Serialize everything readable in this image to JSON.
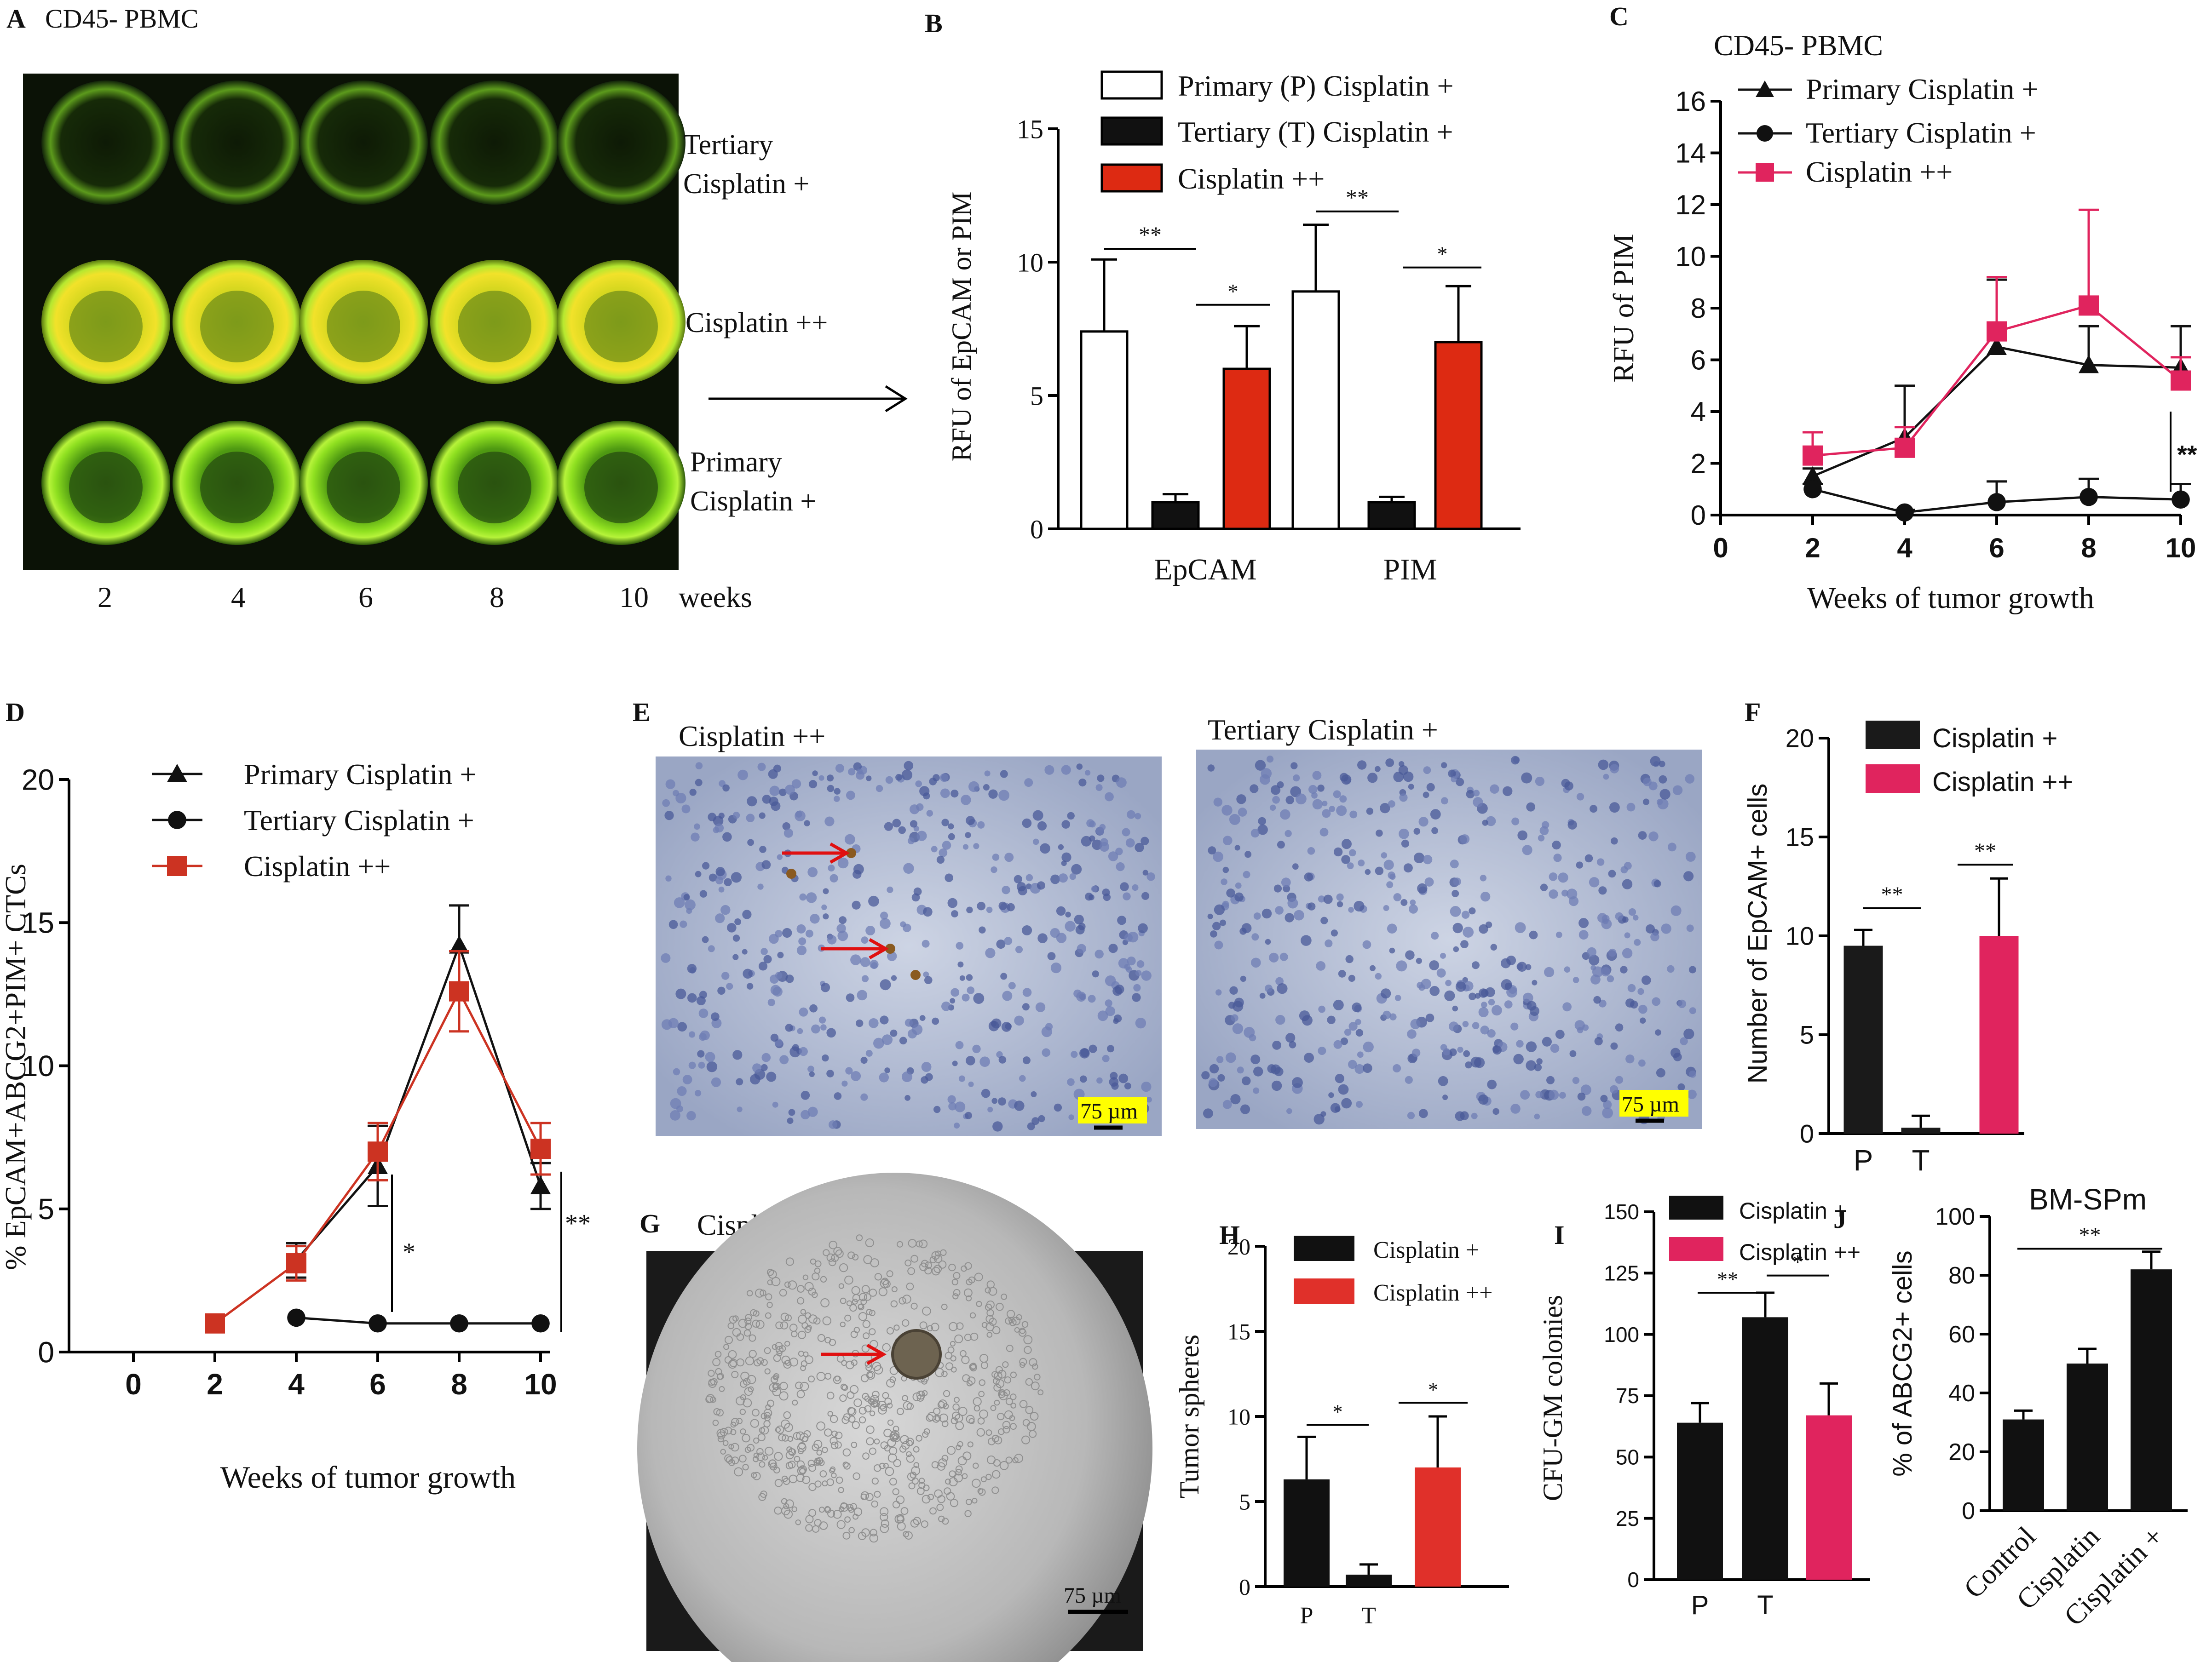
{
  "figure": {
    "panels": {
      "A": {
        "letter": "A",
        "title": "CD45- PBMC",
        "rows": [
          "Tertiary\nCisplatin +",
          "Cisplatin ++",
          "Primary\nCisplatin +"
        ],
        "col_labels": [
          "2",
          "4",
          "6",
          "8",
          "10"
        ],
        "weeks_label": "weeks"
      },
      "E": {
        "letter": "E",
        "left_title": "Cisplatin ++",
        "right_title": "Tertiary Cisplatin +",
        "scale_bar": "75 µm"
      },
      "G": {
        "letter": "G",
        "title": "Cisplatin ++",
        "scale_bar": "75 µm"
      }
    }
  },
  "chart_data": [
    {
      "panel": "B",
      "type": "bar",
      "ylabel": "RFU of EpCAM or PIM",
      "ylim": [
        0,
        15
      ],
      "yticks": [
        0,
        5,
        10,
        15
      ],
      "categories": [
        "EpCAM",
        "PIM"
      ],
      "series": [
        {
          "name": "Primary (P) Cisplatin +",
          "color": "#ffffff",
          "values": [
            7.4,
            8.9
          ],
          "errors": [
            2.7,
            2.5
          ]
        },
        {
          "name": "Tertiary (T) Cisplatin +",
          "color": "#111111",
          "values": [
            1.0,
            1.0
          ],
          "errors": [
            0.3,
            0.2
          ]
        },
        {
          "name": "Cisplatin ++",
          "color": "#dd2a12",
          "values": [
            6.0,
            7.0
          ],
          "errors": [
            1.6,
            2.1
          ]
        }
      ],
      "significance": [
        "**",
        "*",
        "**",
        "*"
      ]
    },
    {
      "panel": "C",
      "type": "line",
      "title": "CD45- PBMC",
      "xlabel": "Weeks of tumor growth",
      "ylabel": "RFU of PIM",
      "xlim": [
        0,
        10
      ],
      "ylim": [
        0,
        16
      ],
      "xticks": [
        0,
        2,
        4,
        6,
        8,
        10
      ],
      "yticks": [
        0,
        2,
        4,
        6,
        8,
        10,
        12,
        14,
        16
      ],
      "x": [
        2,
        4,
        6,
        8,
        10
      ],
      "series": [
        {
          "name": "Primary Cisplatin +",
          "marker": "triangle",
          "color": "#111111",
          "values": [
            1.5,
            3.0,
            6.5,
            5.8,
            5.7
          ],
          "errors": [
            0.3,
            2.0,
            2.6,
            1.5,
            1.6
          ]
        },
        {
          "name": "Tertiary Cisplatin +",
          "marker": "circle",
          "color": "#111111",
          "values": [
            1.0,
            0.1,
            0.5,
            0.7,
            0.6
          ],
          "errors": [
            0.2,
            0.1,
            0.8,
            0.7,
            0.6
          ]
        },
        {
          "name": "Cisplatin ++",
          "marker": "square",
          "color": "#e0245e",
          "values": [
            2.3,
            2.6,
            7.1,
            8.1,
            5.2
          ],
          "errors": [
            0.9,
            0.8,
            2.1,
            3.7,
            0.9
          ]
        }
      ],
      "significance": [
        "**"
      ]
    },
    {
      "panel": "D",
      "type": "line",
      "xlabel": "Weeks of tumor growth",
      "ylabel": "% EpCAM+ABCG2+PIM+  CTCs",
      "xlim": [
        0,
        10
      ],
      "ylim": [
        0,
        20
      ],
      "xticks": [
        0,
        2,
        4,
        6,
        8,
        10
      ],
      "yticks": [
        0,
        5,
        10,
        15,
        20
      ],
      "series": [
        {
          "name": "Primary Cisplatin +",
          "marker": "triangle",
          "color": "#111111",
          "x": [
            4,
            6,
            8,
            10
          ],
          "values": [
            3.2,
            6.5,
            14.2,
            5.8
          ],
          "errors": [
            0.6,
            1.4,
            1.4,
            0.8
          ]
        },
        {
          "name": "Tertiary Cisplatin +",
          "marker": "circle",
          "color": "#111111",
          "x": [
            4,
            6,
            8,
            10
          ],
          "values": [
            1.2,
            1.0,
            1.0,
            1.0
          ],
          "errors": [
            0,
            0,
            0,
            0
          ]
        },
        {
          "name": "Cisplatin ++",
          "marker": "square",
          "color": "#cc3322",
          "x": [
            2,
            4,
            6,
            8,
            10
          ],
          "values": [
            1.0,
            3.1,
            7.0,
            12.6,
            7.1
          ],
          "errors": [
            0,
            0.6,
            1.0,
            1.4,
            0.9
          ]
        }
      ],
      "significance": [
        "*",
        "**"
      ]
    },
    {
      "panel": "F",
      "type": "bar",
      "ylabel": "Number of EpCAM+ cells",
      "ylim": [
        0,
        20
      ],
      "yticks": [
        0,
        5,
        10,
        15,
        20
      ],
      "categories": [
        "P",
        "T",
        ""
      ],
      "series": [
        {
          "name": "Cisplatin +",
          "color": "#1a1a1a",
          "values": [
            9.5,
            0.3,
            null
          ],
          "errors": [
            0.8,
            0.6,
            null
          ]
        },
        {
          "name": "Cisplatin ++",
          "color": "#e0245e",
          "values": [
            null,
            null,
            10.0
          ],
          "errors": [
            null,
            null,
            2.9
          ]
        }
      ],
      "significance": [
        "**",
        "**"
      ]
    },
    {
      "panel": "H",
      "type": "bar",
      "ylabel": "Tumor spheres",
      "ylim": [
        0,
        20
      ],
      "yticks": [
        0,
        5,
        10,
        15,
        20
      ],
      "categories": [
        "P",
        "T",
        ""
      ],
      "series": [
        {
          "name": "Cisplatin +",
          "color": "#111111",
          "values": [
            6.3,
            0.7,
            null
          ],
          "errors": [
            2.5,
            0.6,
            null
          ]
        },
        {
          "name": "Cisplatin ++",
          "color": "#e0302a",
          "values": [
            null,
            null,
            7.0
          ],
          "errors": [
            null,
            null,
            3.0
          ]
        }
      ],
      "significance": [
        "*",
        "*"
      ]
    },
    {
      "panel": "I",
      "type": "bar",
      "ylabel": "CFU-GM colonies",
      "ylim": [
        0,
        150
      ],
      "yticks": [
        0,
        25,
        50,
        75,
        100,
        125,
        150
      ],
      "categories": [
        "P",
        "T",
        ""
      ],
      "series": [
        {
          "name": "Cisplatin +",
          "color": "#111111",
          "values": [
            64,
            107,
            null
          ],
          "errors": [
            8,
            10,
            null
          ]
        },
        {
          "name": "Cisplatin ++",
          "color": "#e0245e",
          "values": [
            null,
            null,
            67
          ],
          "errors": [
            null,
            null,
            13
          ]
        }
      ],
      "significance": [
        "**",
        "*"
      ]
    },
    {
      "panel": "J",
      "type": "bar",
      "title": "BM-SPm",
      "ylabel": "% of ABCG2+ cells",
      "ylim": [
        0,
        100
      ],
      "yticks": [
        0,
        20,
        40,
        60,
        80,
        100
      ],
      "categories": [
        "Control",
        "Cisplatin",
        "Cisplatin +"
      ],
      "series": [
        {
          "name": "",
          "color": "#111111",
          "values": [
            31,
            50,
            82
          ],
          "errors": [
            3,
            5,
            6
          ]
        }
      ],
      "significance": [
        "**"
      ]
    }
  ]
}
